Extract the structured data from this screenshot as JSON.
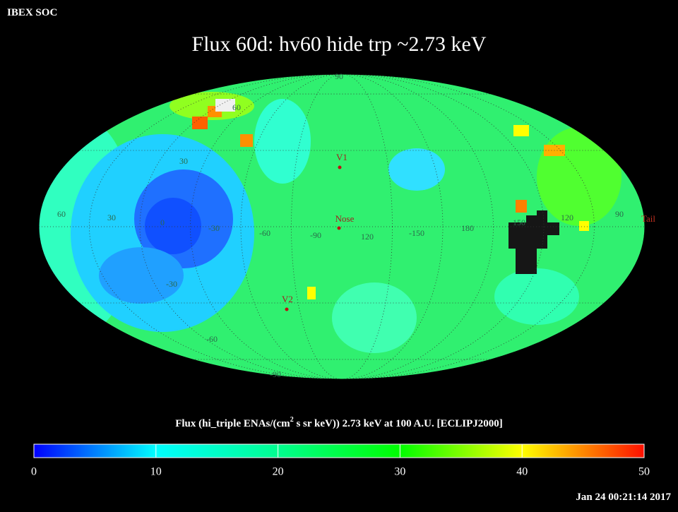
{
  "header": "IBEX SOC",
  "title": "Flux   60d: hv60 hide trp ~2.73 keV",
  "map_labels": {
    "grid": [
      "90",
      "60",
      "30",
      "60",
      "30",
      "0",
      "-30",
      "-60",
      "-90",
      "120",
      "-150",
      "180",
      "150",
      "120",
      "90",
      "-30",
      "-60",
      "-90"
    ],
    "markers": [
      "V1",
      "Nose",
      "V2",
      "Tail"
    ]
  },
  "colorbar": {
    "label": {
      "before": "Flux (hi_triple ENAs/(cm",
      "superscript": "2",
      "after": " s sr keV))  2.73 keV at 100 A.U. [ECLIPJ2000]"
    },
    "range": [
      0,
      50
    ],
    "ticks": [
      0,
      10,
      20,
      30,
      40,
      50
    ]
  },
  "timestamp": "Jan 24 00:21:14 2017"
}
